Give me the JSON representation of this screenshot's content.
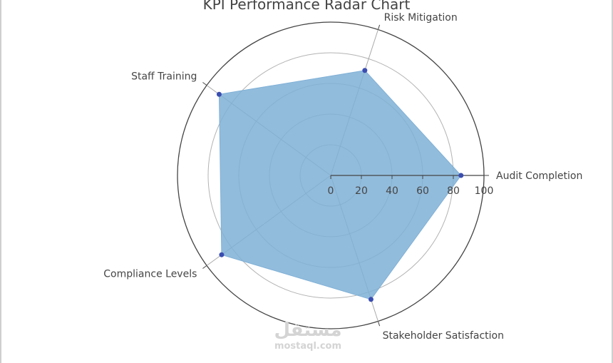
{
  "chart_data": {
    "type": "radar",
    "title": "KPI Performance Radar Chart",
    "categories": [
      "Audit Completion",
      "Risk Mitigation",
      "Staff Training",
      "Compliance Levels",
      "Stakeholder Satisfaction"
    ],
    "values": [
      85,
      72,
      90,
      88,
      85
    ],
    "radial_range": [
      0,
      100
    ],
    "radial_ticks": [
      0,
      20,
      40,
      60,
      80,
      100
    ],
    "fill_color": "#7fb0d6",
    "marker_color": "#3a4db0",
    "grid": true
  },
  "watermark": {
    "arabic": "مستقل",
    "latin": "mostaql.com"
  }
}
